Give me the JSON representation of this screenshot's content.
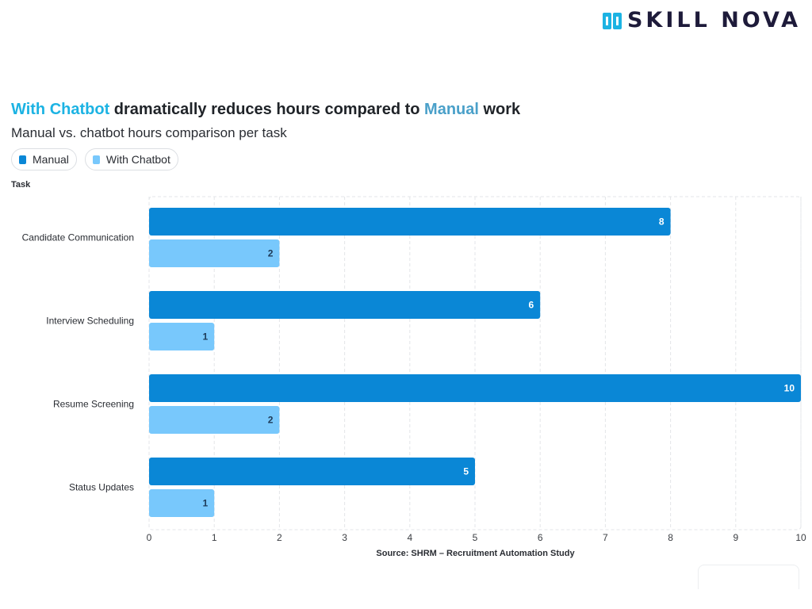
{
  "brand": {
    "name": "SKILL NOVA",
    "logo_icon": "skill-nova-logo-icon"
  },
  "colors": {
    "manual": "#0a87d6",
    "chatbot": "#78c8fc",
    "title_chatbot": "#1cb3e3",
    "title_manual": "#4aa0c9"
  },
  "title": {
    "part1": "With Chatbot",
    "part2": " dramatically reduces hours compared to ",
    "part3": "Manual",
    "part4": " work"
  },
  "subtitle": "Manual vs. chatbot hours comparison per task",
  "legend": [
    {
      "label": "Manual"
    },
    {
      "label": "With Chatbot"
    }
  ],
  "source": "Source: SHRM – Recruitment Automation Study",
  "chart_data": {
    "type": "bar",
    "orientation": "horizontal",
    "title": "With Chatbot dramatically reduces hours compared to Manual work",
    "subtitle": "Manual vs. chatbot hours comparison per task",
    "ylabel": "Task",
    "xlabel": "",
    "categories": [
      "Candidate Communication",
      "Interview Scheduling",
      "Resume Screening",
      "Status Updates"
    ],
    "series": [
      {
        "name": "Manual",
        "values": [
          8,
          6,
          10,
          5
        ]
      },
      {
        "name": "With Chatbot",
        "values": [
          2,
          1,
          2,
          1
        ]
      }
    ],
    "xlim": [
      0,
      10
    ],
    "xticks": [
      0,
      1,
      2,
      3,
      4,
      5,
      6,
      7,
      8,
      9,
      10
    ],
    "grid": true,
    "legend_position": "top-left",
    "data_labels": true
  }
}
